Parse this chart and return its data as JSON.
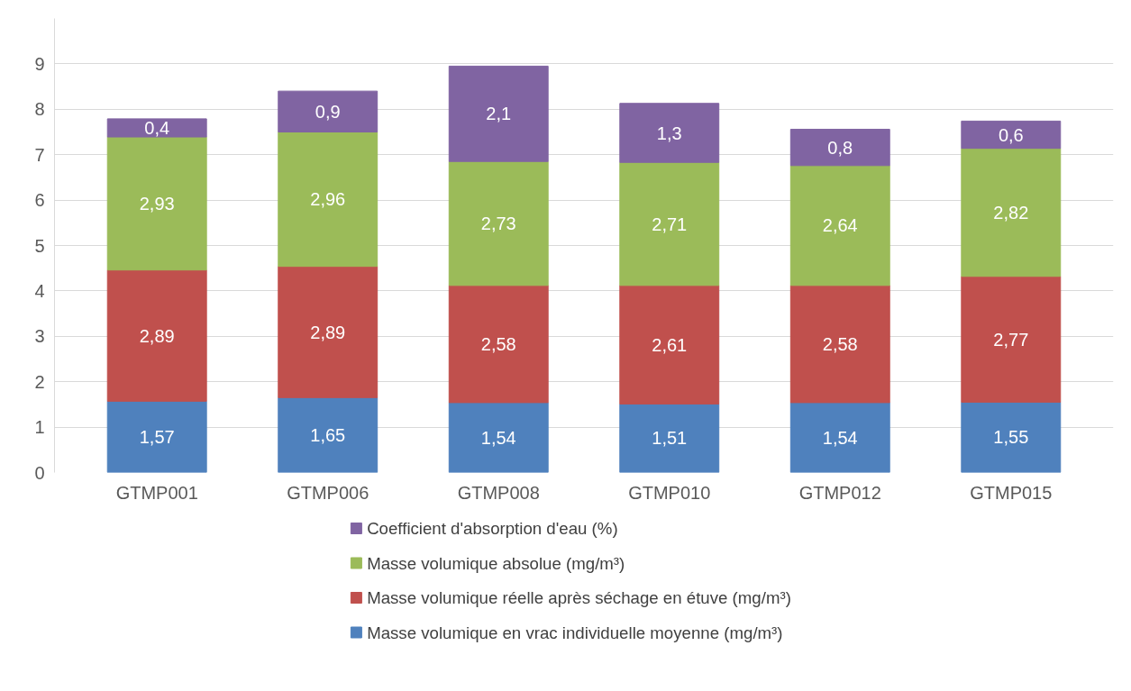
{
  "chart_data": {
    "type": "bar",
    "stacked": true,
    "categories": [
      "GTMP001",
      "GTMP006",
      "GTMP008",
      "GTMP010",
      "GTMP012",
      "GTMP015"
    ],
    "series": [
      {
        "name": "Masse volumique en vrac individuelle moyenne (mg/m³)",
        "color": "#4f81bd",
        "values": [
          1.57,
          1.65,
          1.54,
          1.51,
          1.54,
          1.55
        ],
        "value_labels": [
          "1,57",
          "1,65",
          "1,54",
          "1,51",
          "1,54",
          "1,55"
        ]
      },
      {
        "name": "Masse volumique réelle après séchage en étuve (mg/m³)",
        "color": "#c0504d",
        "values": [
          2.89,
          2.89,
          2.58,
          2.61,
          2.58,
          2.77
        ],
        "value_labels": [
          "2,89",
          "2,89",
          "2,58",
          "2,61",
          "2,58",
          "2,77"
        ]
      },
      {
        "name": "Masse volumique absolue (mg/m³)",
        "color": "#9bbb59",
        "values": [
          2.93,
          2.96,
          2.73,
          2.71,
          2.64,
          2.82
        ],
        "value_labels": [
          "2,93",
          "2,96",
          "2,73",
          "2,71",
          "2,64",
          "2,82"
        ]
      },
      {
        "name": "Coefficient d'absorption d'eau  (%)",
        "color": "#8064a2",
        "values": [
          0.4,
          0.9,
          2.1,
          1.3,
          0.8,
          0.6
        ],
        "value_labels": [
          "0,4",
          "0,9",
          "2,1",
          "1,3",
          "0,8",
          "0,6"
        ]
      }
    ],
    "ylim": [
      0,
      10
    ],
    "yticks": [
      0,
      1,
      2,
      3,
      4,
      5,
      6,
      7,
      8,
      9
    ],
    "grid": "y",
    "legend": "bottom"
  }
}
